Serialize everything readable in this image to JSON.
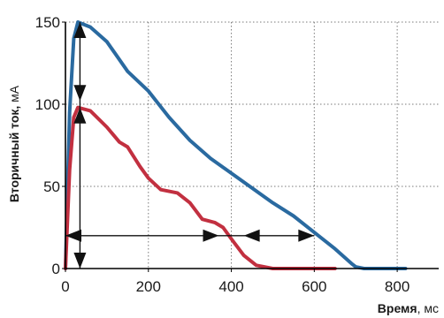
{
  "chart_data": {
    "type": "line",
    "ylabel": {
      "main": "Вторичный ток,",
      "unit": " мА"
    },
    "xlabel": {
      "main": "Время",
      "unit": ", мс"
    },
    "xlim": [
      0,
      900
    ],
    "ylim": [
      0,
      150
    ],
    "xticks": [
      0,
      200,
      400,
      600,
      800
    ],
    "yticks": [
      0,
      50,
      100,
      150
    ],
    "grid": true,
    "series": [
      {
        "color": "#2a6aa0",
        "points": [
          [
            0,
            0
          ],
          [
            10,
            95
          ],
          [
            20,
            140
          ],
          [
            30,
            150
          ],
          [
            60,
            147
          ],
          [
            100,
            138
          ],
          [
            150,
            120
          ],
          [
            200,
            108
          ],
          [
            250,
            92
          ],
          [
            300,
            78
          ],
          [
            350,
            67
          ],
          [
            400,
            58
          ],
          [
            450,
            49
          ],
          [
            500,
            40
          ],
          [
            550,
            32
          ],
          [
            600,
            22
          ],
          [
            650,
            12
          ],
          [
            690,
            3
          ],
          [
            700,
            1
          ],
          [
            720,
            0
          ],
          [
            800,
            0
          ],
          [
            820,
            0
          ]
        ]
      },
      {
        "color": "#c23040",
        "points": [
          [
            0,
            0
          ],
          [
            10,
            60
          ],
          [
            20,
            92
          ],
          [
            30,
            98
          ],
          [
            60,
            96
          ],
          [
            100,
            86
          ],
          [
            130,
            77
          ],
          [
            150,
            74
          ],
          [
            180,
            62
          ],
          [
            200,
            55
          ],
          [
            230,
            48
          ],
          [
            270,
            46
          ],
          [
            300,
            40
          ],
          [
            330,
            30
          ],
          [
            360,
            28
          ],
          [
            380,
            25
          ],
          [
            400,
            18
          ],
          [
            430,
            8
          ],
          [
            460,
            2
          ],
          [
            500,
            0
          ],
          [
            550,
            0
          ],
          [
            600,
            0
          ],
          [
            650,
            0
          ]
        ]
      }
    ],
    "annotations": {
      "vertical_arrow": {
        "x": 35,
        "y": [
          0,
          150
        ],
        "inner_arrowheads_at": [
          98,
          102
        ]
      },
      "horizontal_arrow": {
        "y": 20,
        "x": [
          0,
          600
        ],
        "inner_arrowheads_at": [
          370,
          430
        ]
      }
    }
  }
}
